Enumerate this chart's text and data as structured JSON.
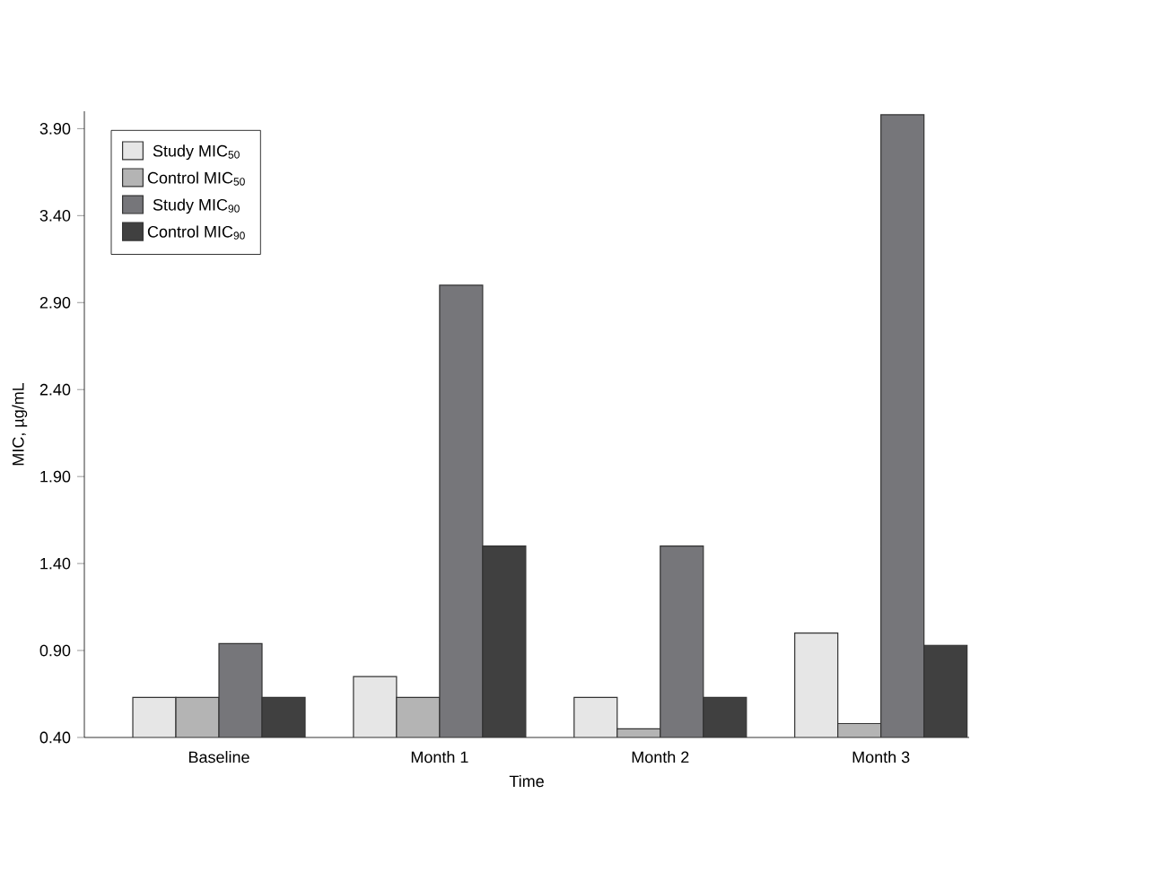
{
  "chart_data": {
    "type": "bar",
    "xlabel": "Time",
    "ylabel": "MIC, µg/mL",
    "categories": [
      "Baseline",
      "Month 1",
      "Month 2",
      "Month 3"
    ],
    "series": [
      {
        "name": "Study MIC$_{50}$",
        "color": "#e6e6e6",
        "values": [
          0.63,
          0.75,
          0.63,
          1.0
        ]
      },
      {
        "name": "Control MIC$_{50}$",
        "color": "#b4b4b4",
        "values": [
          0.63,
          0.63,
          0.45,
          0.48
        ]
      },
      {
        "name": "Study MIC$_{90}$",
        "color": "#76767a",
        "values": [
          0.94,
          3.0,
          1.5,
          3.98
        ]
      },
      {
        "name": "Control MIC$_{90}$",
        "color": "#404040",
        "values": [
          0.63,
          1.5,
          0.63,
          0.93
        ]
      }
    ],
    "ylim": [
      0.4,
      4.0
    ],
    "yticks": [
      {
        "value": 0.4,
        "label": "0.40"
      },
      {
        "value": 0.9,
        "label": "0.90"
      },
      {
        "value": 1.4,
        "label": "1.40"
      },
      {
        "value": 1.9,
        "label": "1.90"
      },
      {
        "value": 2.4,
        "label": "2.40"
      },
      {
        "value": 2.9,
        "label": "2.90"
      },
      {
        "value": 3.4,
        "label": "3.40"
      },
      {
        "value": 3.9,
        "label": "3.90"
      }
    ],
    "grid": false,
    "legend": "top left"
  }
}
